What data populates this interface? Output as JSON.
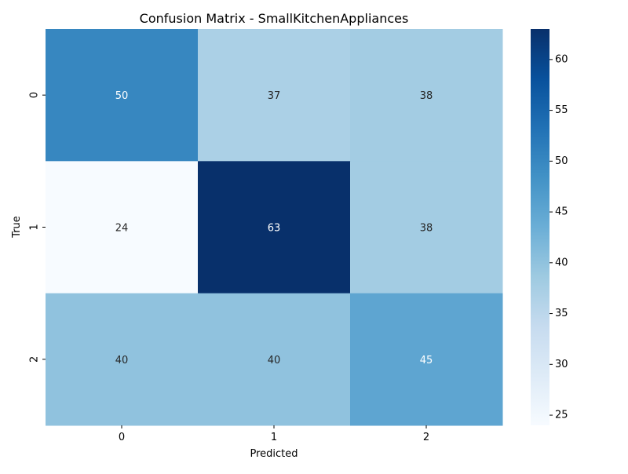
{
  "chart_data": {
    "type": "heatmap",
    "title": "Confusion Matrix - SmallKitchenAppliances",
    "xlabel": "Predicted",
    "ylabel": "True",
    "x_categories": [
      "0",
      "1",
      "2"
    ],
    "y_categories": [
      "0",
      "1",
      "2"
    ],
    "matrix": [
      [
        50,
        37,
        38
      ],
      [
        24,
        63,
        38
      ],
      [
        40,
        40,
        45
      ]
    ],
    "colorscale": "Blues",
    "color_range": [
      24,
      63
    ],
    "colorbar_ticks": [
      25,
      30,
      35,
      40,
      45,
      50,
      55,
      60
    ]
  }
}
